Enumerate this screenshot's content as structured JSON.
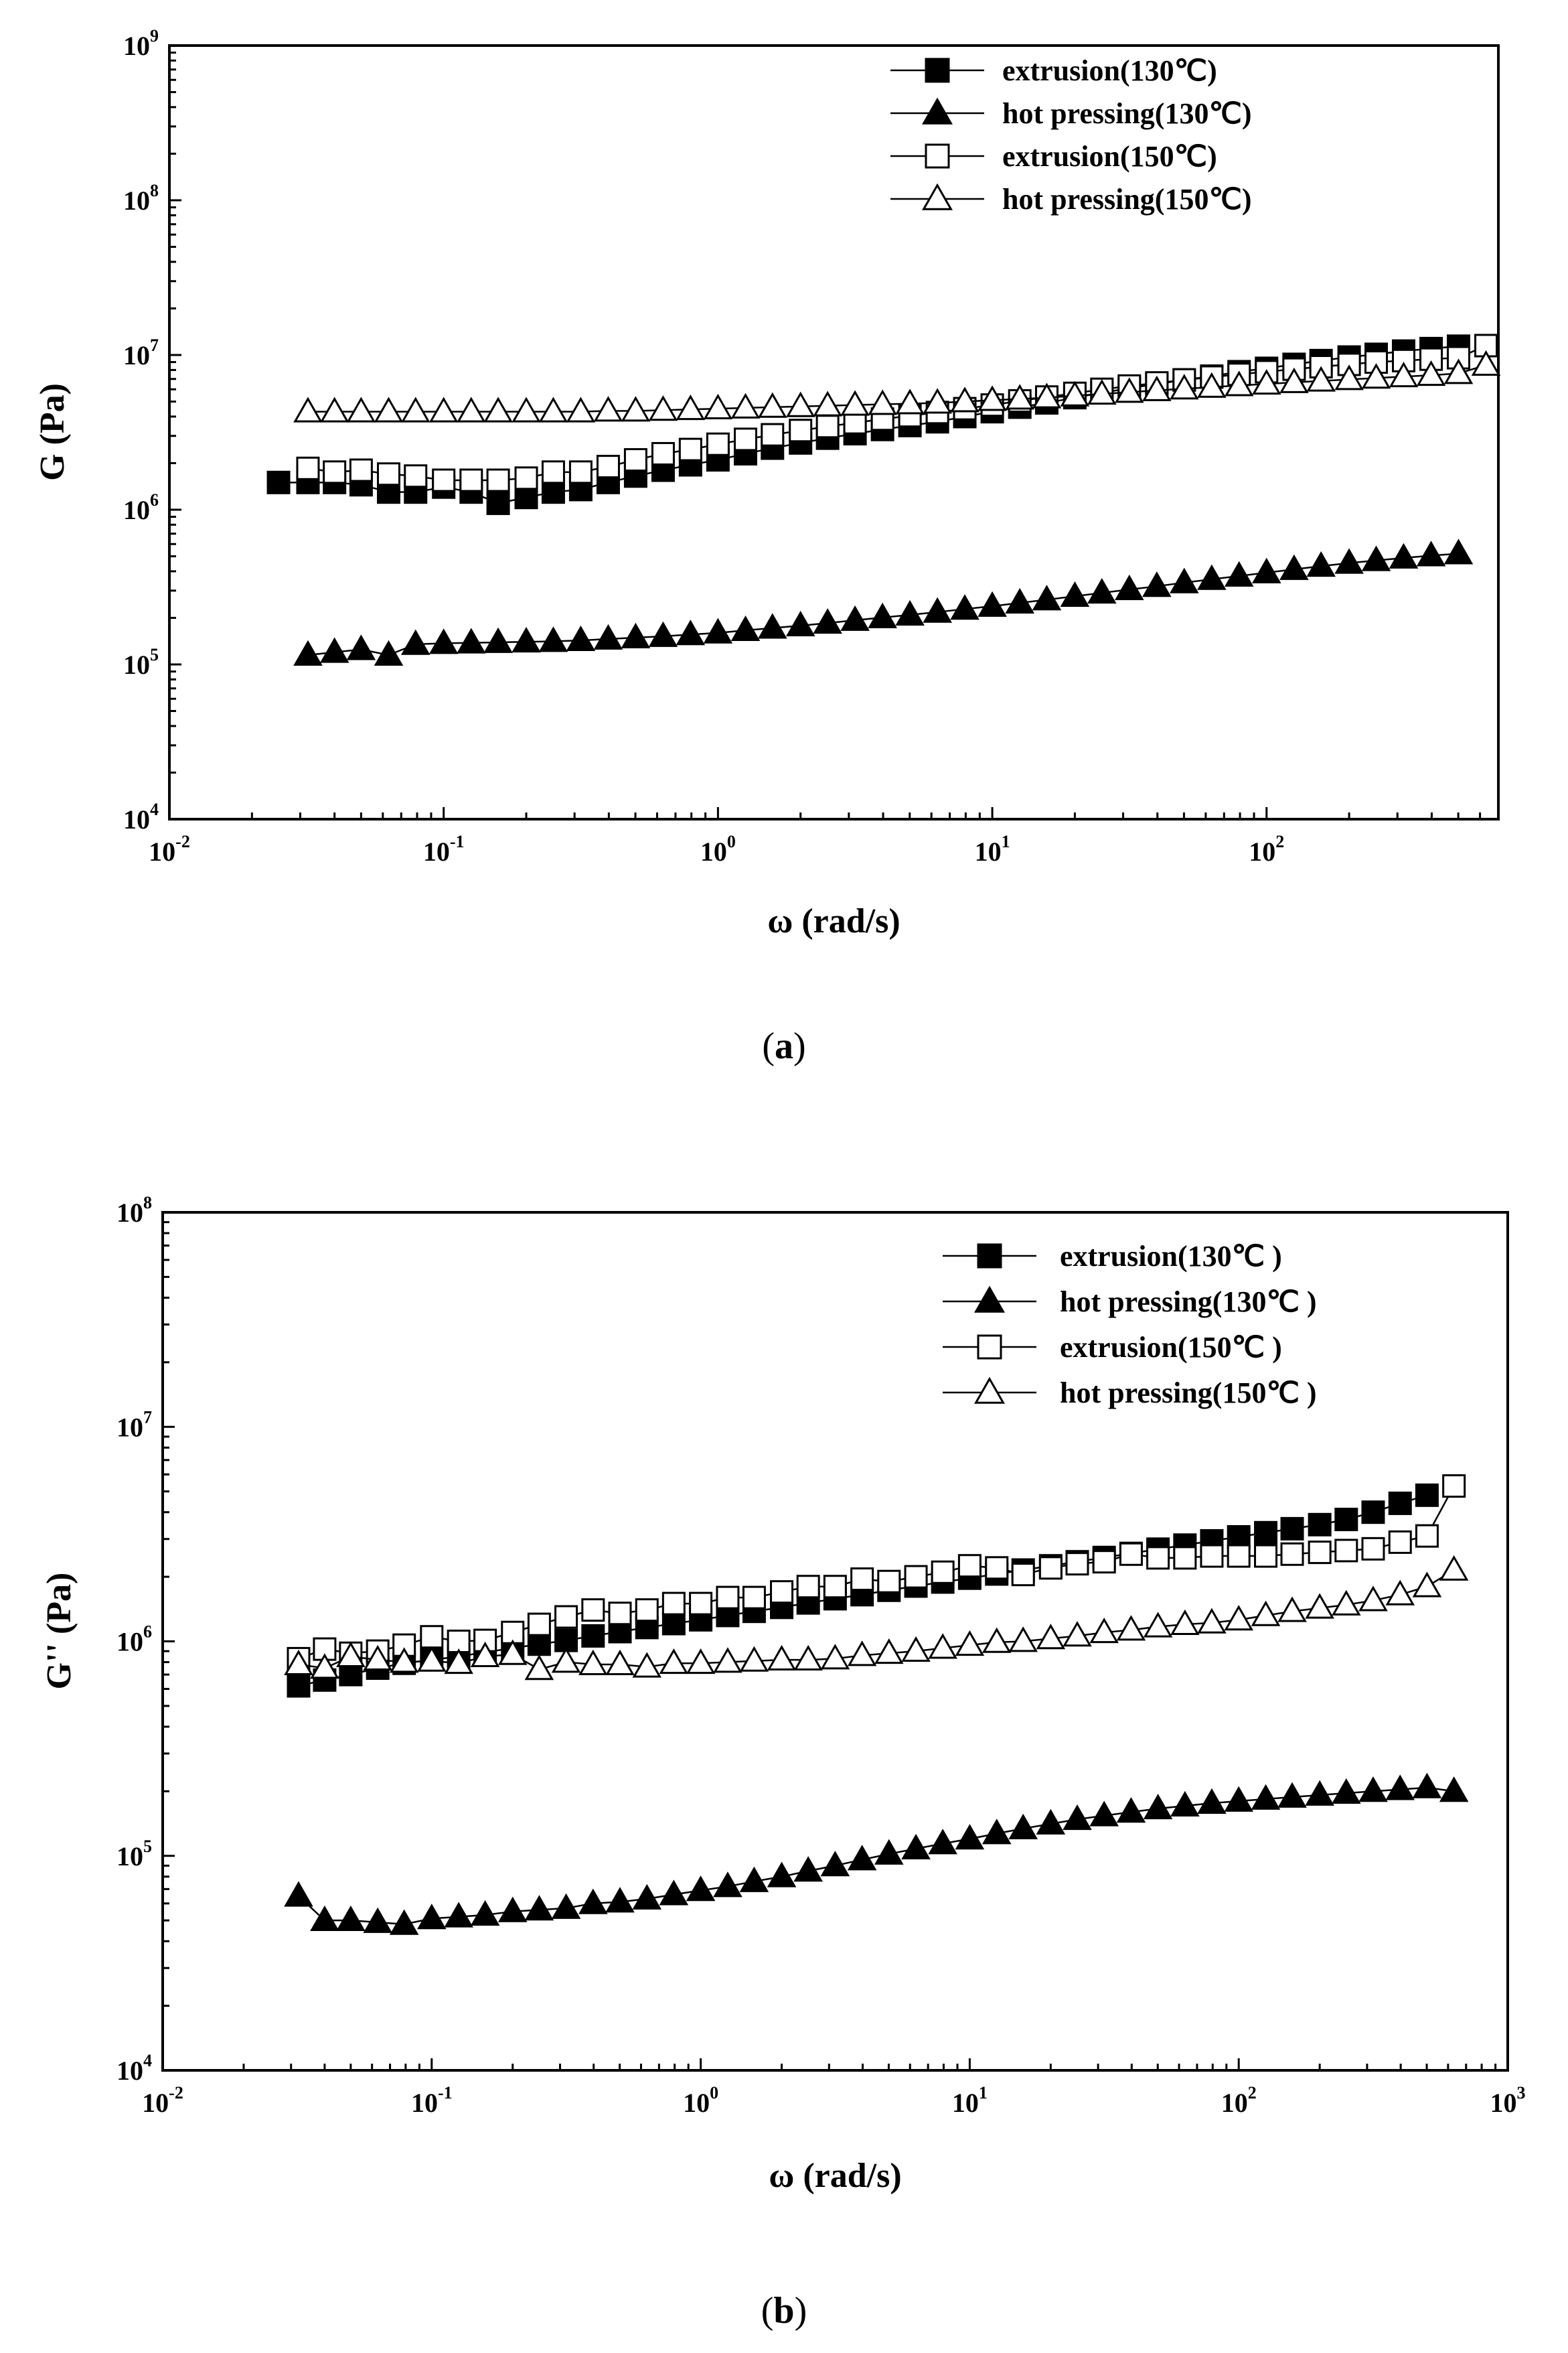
{
  "figure": {
    "caption_a": {
      "open": "(",
      "letter": "a",
      "close": ")"
    },
    "caption_b": {
      "open": "(",
      "letter": "b",
      "close": ")"
    }
  },
  "chart_data": [
    {
      "type": "scatter",
      "panel": "a",
      "xscale": "log",
      "yscale": "log",
      "xlabel": "ω (rad/s)",
      "ylabel": "G (Pa)",
      "xlim": [
        0.01,
        700
      ],
      "ylim": [
        10000,
        1000000000
      ],
      "xticks": [
        {
          "base": "10",
          "exp": "-2",
          "v": 0.01
        },
        {
          "base": "10",
          "exp": "-1",
          "v": 0.1
        },
        {
          "base": "10",
          "exp": "0",
          "v": 1
        },
        {
          "base": "10",
          "exp": "1",
          "v": 10
        },
        {
          "base": "10",
          "exp": "2",
          "v": 100
        }
      ],
      "yticks": [
        {
          "base": "10",
          "exp": "4",
          "v": 10000
        },
        {
          "base": "10",
          "exp": "5",
          "v": 100000
        },
        {
          "base": "10",
          "exp": "6",
          "v": 1000000
        },
        {
          "base": "10",
          "exp": "7",
          "v": 10000000
        },
        {
          "base": "10",
          "exp": "8",
          "v": 100000000
        },
        {
          "base": "10",
          "exp": "9",
          "v": 1000000000
        }
      ],
      "legend_position": "top-right",
      "series": [
        {
          "name": "extrusion(130℃)",
          "marker": "square-filled",
          "x": [
            0.025,
            0.032,
            0.04,
            0.05,
            0.063,
            0.079,
            0.1,
            0.126,
            0.158,
            0.2,
            0.251,
            0.316,
            0.398,
            0.501,
            0.631,
            0.794,
            1,
            1.26,
            1.58,
            2,
            2.51,
            3.16,
            3.98,
            5.01,
            6.31,
            7.94,
            10,
            12.6,
            15.8,
            20,
            25.1,
            31.6,
            39.8,
            50.1,
            63.1,
            79.4,
            100,
            126,
            158,
            200,
            251,
            316,
            398,
            501
          ],
          "y": [
            1500000,
            1500000,
            1500000,
            1450000,
            1300000,
            1300000,
            1400000,
            1300000,
            1100000,
            1200000,
            1300000,
            1350000,
            1500000,
            1650000,
            1800000,
            1950000,
            2100000,
            2300000,
            2500000,
            2700000,
            2900000,
            3100000,
            3300000,
            3500000,
            3700000,
            4000000,
            4300000,
            4600000,
            4900000,
            5300000,
            5700000,
            6100000,
            6500000,
            6900000,
            7300000,
            7800000,
            8200000,
            8700000,
            9200000,
            9700000,
            10100000,
            10600000,
            11000000,
            11400000
          ]
        },
        {
          "name": "hot pressing(130℃)",
          "marker": "triangle-filled",
          "x": [
            0.032,
            0.04,
            0.05,
            0.063,
            0.079,
            0.1,
            0.126,
            0.158,
            0.2,
            0.251,
            0.316,
            0.398,
            0.501,
            0.631,
            0.794,
            1,
            1.26,
            1.58,
            2,
            2.51,
            3.16,
            3.98,
            5.01,
            6.31,
            7.94,
            10,
            12.6,
            15.8,
            20,
            25.1,
            31.6,
            39.8,
            50.1,
            63.1,
            79.4,
            100,
            126,
            158,
            200,
            251,
            316,
            398,
            501
          ],
          "y": [
            115000,
            120000,
            125000,
            115000,
            135000,
            137000,
            138000,
            139000,
            140000,
            141000,
            143000,
            146000,
            149000,
            152000,
            156000,
            160000,
            166000,
            172000,
            178000,
            185000,
            193000,
            201000,
            209000,
            218000,
            228000,
            238000,
            250000,
            262000,
            276000,
            290000,
            305000,
            320000,
            338000,
            355000,
            373000,
            392000,
            412000,
            432000,
            452000,
            470000,
            488000,
            505000,
            520000
          ]
        },
        {
          "name": "extrusion(150℃)",
          "marker": "square-open",
          "x": [
            0.032,
            0.04,
            0.05,
            0.063,
            0.079,
            0.1,
            0.126,
            0.158,
            0.2,
            0.251,
            0.316,
            0.398,
            0.501,
            0.631,
            0.794,
            1,
            1.26,
            1.58,
            2,
            2.51,
            3.16,
            3.98,
            5.01,
            6.31,
            7.94,
            10,
            12.6,
            15.8,
            20,
            25.1,
            31.6,
            39.8,
            50.1,
            63.1,
            79.4,
            100,
            126,
            158,
            200,
            251,
            316,
            398,
            501,
            631
          ],
          "y": [
            1850000,
            1750000,
            1800000,
            1700000,
            1650000,
            1550000,
            1550000,
            1550000,
            1600000,
            1750000,
            1750000,
            1900000,
            2100000,
            2300000,
            2450000,
            2650000,
            2850000,
            3050000,
            3250000,
            3450000,
            3650000,
            3850000,
            4050000,
            4250000,
            4500000,
            4750000,
            5050000,
            5350000,
            5650000,
            6000000,
            6300000,
            6600000,
            6900000,
            7200000,
            7500000,
            7800000,
            8100000,
            8400000,
            8700000,
            9000000,
            9200000,
            9400000,
            9600000,
            11500000
          ]
        },
        {
          "name": "hot pressing(150℃)",
          "marker": "triangle-open",
          "x": [
            0.032,
            0.04,
            0.05,
            0.063,
            0.079,
            0.1,
            0.126,
            0.158,
            0.2,
            0.251,
            0.316,
            0.398,
            0.501,
            0.631,
            0.794,
            1,
            1.26,
            1.58,
            2,
            2.51,
            3.16,
            3.98,
            5.01,
            6.31,
            7.94,
            10,
            12.6,
            15.8,
            20,
            25.1,
            31.6,
            39.8,
            50.1,
            63.1,
            79.4,
            100,
            126,
            158,
            200,
            251,
            316,
            398,
            501,
            631
          ],
          "y": [
            4300000,
            4300000,
            4300000,
            4300000,
            4300000,
            4300000,
            4300000,
            4300000,
            4300000,
            4300000,
            4300000,
            4350000,
            4350000,
            4400000,
            4450000,
            4500000,
            4550000,
            4600000,
            4650000,
            4700000,
            4750000,
            4800000,
            4850000,
            4900000,
            5000000,
            5100000,
            5200000,
            5300000,
            5450000,
            5600000,
            5750000,
            5900000,
            6050000,
            6200000,
            6350000,
            6500000,
            6650000,
            6800000,
            6950000,
            7100000,
            7250000,
            7400000,
            7600000,
            8600000
          ]
        }
      ]
    },
    {
      "type": "scatter",
      "panel": "b",
      "xscale": "log",
      "yscale": "log",
      "xlabel": "ω (rad/s)",
      "ylabel": "G'' (Pa)",
      "xlim": [
        0.01,
        1000
      ],
      "ylim": [
        10000,
        100000000
      ],
      "xticks": [
        {
          "base": "10",
          "exp": "-2",
          "v": 0.01
        },
        {
          "base": "10",
          "exp": "-1",
          "v": 0.1
        },
        {
          "base": "10",
          "exp": "0",
          "v": 1
        },
        {
          "base": "10",
          "exp": "1",
          "v": 10
        },
        {
          "base": "10",
          "exp": "2",
          "v": 100
        },
        {
          "base": "10",
          "exp": "3",
          "v": 1000
        }
      ],
      "yticks": [
        {
          "base": "10",
          "exp": "4",
          "v": 10000
        },
        {
          "base": "10",
          "exp": "5",
          "v": 100000
        },
        {
          "base": "10",
          "exp": "6",
          "v": 1000000
        },
        {
          "base": "10",
          "exp": "7",
          "v": 10000000
        },
        {
          "base": "10",
          "exp": "8",
          "v": 100000000
        }
      ],
      "legend_position": "top-right",
      "series": [
        {
          "name": "extrusion(130℃ )",
          "marker": "square-filled",
          "x": [
            0.032,
            0.04,
            0.05,
            0.063,
            0.079,
            0.1,
            0.126,
            0.158,
            0.2,
            0.251,
            0.316,
            0.398,
            0.501,
            0.631,
            0.794,
            1,
            1.26,
            1.58,
            2,
            2.51,
            3.16,
            3.98,
            5.01,
            6.31,
            7.94,
            10,
            12.6,
            15.8,
            20,
            25.1,
            31.6,
            39.8,
            50.1,
            63.1,
            79.4,
            100,
            126,
            158,
            200,
            251,
            316,
            398,
            501
          ],
          "y": [
            620000,
            660000,
            700000,
            750000,
            790000,
            820000,
            850000,
            890000,
            930000,
            970000,
            1010000,
            1060000,
            1110000,
            1160000,
            1210000,
            1260000,
            1320000,
            1380000,
            1440000,
            1510000,
            1580000,
            1650000,
            1730000,
            1810000,
            1890000,
            1970000,
            2060000,
            2150000,
            2250000,
            2350000,
            2460000,
            2570000,
            2690000,
            2810000,
            2940000,
            3070000,
            3210000,
            3350000,
            3500000,
            3700000,
            4000000,
            4400000,
            4800000
          ]
        },
        {
          "name": "hot pressing(130℃ )",
          "marker": "triangle-filled",
          "x": [
            0.032,
            0.04,
            0.05,
            0.063,
            0.079,
            0.1,
            0.126,
            0.158,
            0.2,
            0.251,
            0.316,
            0.398,
            0.501,
            0.631,
            0.794,
            1,
            1.26,
            1.58,
            2,
            2.51,
            3.16,
            3.98,
            5.01,
            6.31,
            7.94,
            10,
            12.6,
            15.8,
            20,
            25.1,
            31.6,
            39.8,
            50.1,
            63.1,
            79.4,
            100,
            126,
            158,
            200,
            251,
            316,
            398,
            501,
            631
          ],
          "y": [
            65000,
            50000,
            50000,
            49000,
            48000,
            51000,
            52000,
            53000,
            55000,
            56000,
            57000,
            60000,
            61000,
            63000,
            66000,
            69000,
            72000,
            76000,
            80000,
            85000,
            90000,
            96000,
            102000,
            108000,
            114000,
            120000,
            127000,
            134000,
            141000,
            148000,
            154000,
            160000,
            166000,
            171000,
            176000,
            180000,
            184000,
            188000,
            192000,
            196000,
            200000,
            204000,
            208000,
            200000
          ]
        },
        {
          "name": "extrusion(150℃ )",
          "marker": "square-open",
          "x": [
            0.032,
            0.04,
            0.05,
            0.063,
            0.079,
            0.1,
            0.126,
            0.158,
            0.2,
            0.251,
            0.316,
            0.398,
            0.501,
            0.631,
            0.794,
            1,
            1.26,
            1.58,
            2,
            2.51,
            3.16,
            3.98,
            5.01,
            6.31,
            7.94,
            10,
            12.6,
            15.8,
            20,
            25.1,
            31.6,
            39.8,
            50.1,
            63.1,
            79.4,
            100,
            126,
            158,
            200,
            251,
            316,
            398,
            501,
            631
          ],
          "y": [
            830000,
            920000,
            880000,
            900000,
            960000,
            1050000,
            1000000,
            1010000,
            1100000,
            1200000,
            1300000,
            1400000,
            1350000,
            1400000,
            1500000,
            1500000,
            1600000,
            1600000,
            1700000,
            1800000,
            1800000,
            1950000,
            1900000,
            2000000,
            2100000,
            2250000,
            2200000,
            2050000,
            2200000,
            2300000,
            2350000,
            2550000,
            2450000,
            2450000,
            2500000,
            2500000,
            2500000,
            2550000,
            2600000,
            2650000,
            2700000,
            2900000,
            3100000,
            5300000
          ]
        },
        {
          "name": "hot pressing(150℃ )",
          "marker": "triangle-open",
          "x": [
            0.032,
            0.04,
            0.05,
            0.063,
            0.079,
            0.1,
            0.126,
            0.158,
            0.2,
            0.251,
            0.316,
            0.398,
            0.501,
            0.631,
            0.794,
            1,
            1.26,
            1.58,
            2,
            2.51,
            3.16,
            3.98,
            5.01,
            6.31,
            7.94,
            10,
            12.6,
            15.8,
            20,
            25.1,
            31.6,
            39.8,
            50.1,
            63.1,
            79.4,
            100,
            126,
            158,
            200,
            251,
            316,
            398,
            501,
            631
          ],
          "y": [
            780000,
            750000,
            850000,
            820000,
            800000,
            810000,
            790000,
            850000,
            870000,
            740000,
            800000,
            780000,
            780000,
            760000,
            790000,
            790000,
            800000,
            810000,
            820000,
            820000,
            830000,
            860000,
            880000,
            900000,
            930000,
            960000,
            990000,
            1000000,
            1030000,
            1060000,
            1100000,
            1130000,
            1170000,
            1200000,
            1220000,
            1260000,
            1320000,
            1380000,
            1430000,
            1480000,
            1550000,
            1650000,
            1800000,
            2150000
          ]
        }
      ]
    }
  ]
}
